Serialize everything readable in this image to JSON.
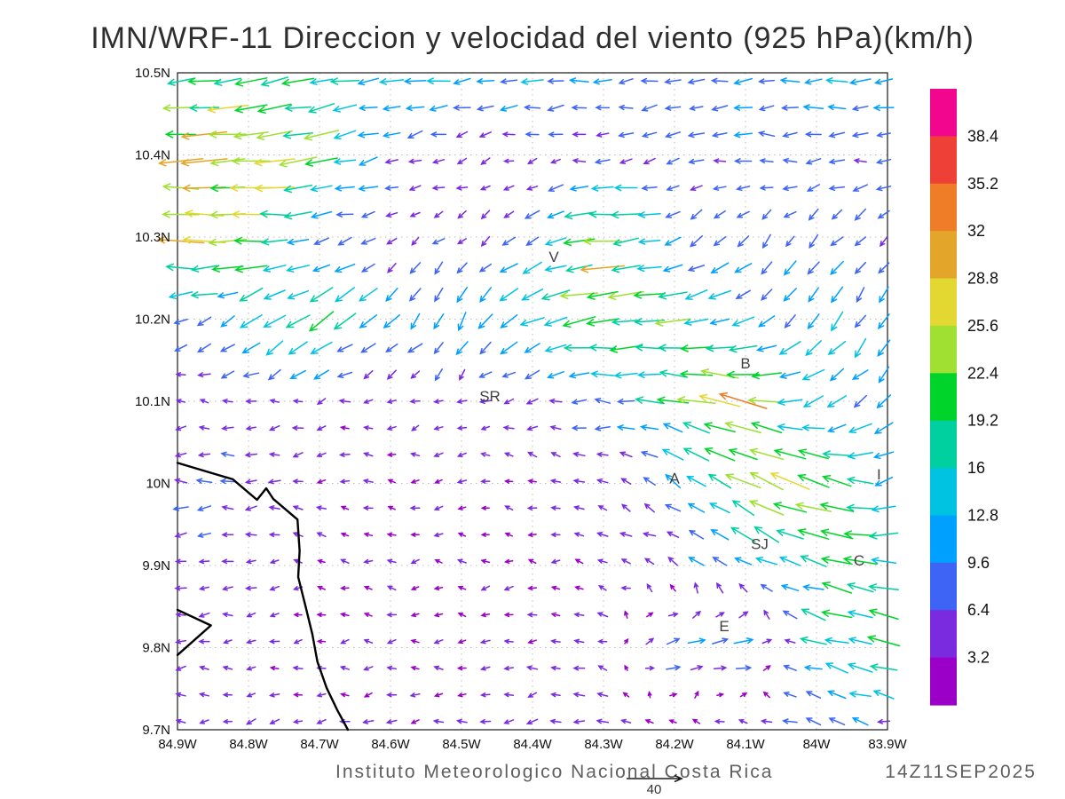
{
  "title": "IMN/WRF-11 Direccion y velocidad del viento (925 hPa)(km/h)",
  "footer": {
    "caption": "Instituto Meteorologico Nacional Costa Rica",
    "timestamp": "14Z11SEP2025",
    "reference_vector": {
      "label": "40",
      "value_kmh": 40
    }
  },
  "axes": {
    "x_tick_labels": [
      "84.9W",
      "84.8W",
      "84.7W",
      "84.6W",
      "84.5W",
      "84.4W",
      "84.3W",
      "84.2W",
      "84.1W",
      "84W",
      "83.9W"
    ],
    "y_tick_labels": [
      "10.5N",
      "10.4N",
      "10.3N",
      "10.2N",
      "10.1N",
      "10N",
      "9.9N",
      "9.8N",
      "9.7N"
    ],
    "lon_range": [
      -84.9,
      -83.9
    ],
    "lat_range": [
      9.7,
      10.5
    ],
    "grid_style": "dotted"
  },
  "colorbar": {
    "units": "km/h",
    "labels_top_to_bottom": [
      "38.4",
      "35.2",
      "32",
      "28.8",
      "25.6",
      "22.4",
      "19.2",
      "16",
      "12.8",
      "9.6",
      "6.4",
      "3.2"
    ],
    "colors_top_to_bottom": [
      "#f2068e",
      "#ef4037",
      "#ef7d28",
      "#e3a62b",
      "#e3d832",
      "#9fe032",
      "#00d42a",
      "#00cfa0",
      "#00c3e1",
      "#00a0ff",
      "#3d64f5",
      "#7a2be0",
      "#9b00c8"
    ]
  },
  "chart_data": {
    "type": "scatter",
    "variant": "wind_vector_field",
    "title": "IMN/WRF-11 Direccion y velocidad del viento (925 hPa)(km/h)",
    "level": "925 hPa",
    "units": "km/h",
    "xlim": [
      -84.9,
      -83.9
    ],
    "ylim": [
      9.7,
      10.5
    ],
    "speed_levels": [
      3.2,
      6.4,
      9.6,
      12.8,
      16,
      19.2,
      22.4,
      25.6,
      28.8,
      32,
      35.2,
      38.4
    ],
    "palette_low_to_high": [
      "#9b00c8",
      "#7a2be0",
      "#3d64f5",
      "#00a0ff",
      "#00c3e1",
      "#00cfa0",
      "#00d42a",
      "#9fe032",
      "#e3d832",
      "#e3a62b",
      "#ef7d28",
      "#ef4037",
      "#f2068e"
    ],
    "grid": {
      "lons": [
        -84.9,
        -84.8,
        -84.7,
        -84.6,
        -84.5,
        -84.4,
        -84.3,
        -84.2,
        -84.1,
        -84.0,
        -83.9
      ],
      "lats": [
        9.7,
        9.8,
        9.9,
        10.0,
        10.1,
        10.2,
        10.3,
        10.4,
        10.5
      ],
      "u_kmh": [
        [
          -4,
          -4,
          -4,
          -4,
          -4,
          -5,
          -5,
          -4,
          -6,
          -8,
          -6
        ],
        [
          -4,
          -4,
          -3,
          -3,
          -3,
          -4,
          -4,
          10,
          12,
          -14,
          -18
        ],
        [
          -5,
          -4,
          -3,
          -3,
          -3,
          -3,
          -4,
          -6,
          -10,
          -16,
          -20
        ],
        [
          -8,
          -6,
          -4,
          -3,
          -3,
          -3,
          -4,
          -8,
          -20,
          -24,
          -10
        ],
        [
          -4,
          -4,
          -4,
          -4,
          -4,
          -5,
          -8,
          -18,
          -28,
          -12,
          -8
        ],
        [
          -6,
          -12,
          -14,
          -8,
          -5,
          -14,
          -24,
          -20,
          -10,
          -6,
          -6
        ],
        [
          -28,
          -22,
          -10,
          -5,
          -4,
          -8,
          -26,
          -8,
          -5,
          -5,
          -5
        ],
        [
          -26,
          -30,
          -20,
          -6,
          -4,
          -4,
          -5,
          -6,
          -8,
          -8,
          -8
        ],
        [
          -20,
          -18,
          -16,
          -14,
          -12,
          -12,
          -10,
          -10,
          -10,
          -12,
          -12
        ]
      ],
      "v_kmh": [
        [
          0,
          -1,
          -1,
          -1,
          -1,
          -1,
          0,
          1,
          1,
          2,
          1
        ],
        [
          0,
          0,
          0,
          0,
          0,
          0,
          1,
          2,
          2,
          4,
          4
        ],
        [
          -1,
          0,
          0,
          0,
          0,
          0,
          1,
          3,
          6,
          4,
          2
        ],
        [
          0,
          0,
          0,
          0,
          0,
          1,
          2,
          6,
          10,
          8,
          -4
        ],
        [
          0,
          0,
          -1,
          -1,
          -2,
          -1,
          0,
          4,
          6,
          -6,
          -8
        ],
        [
          -2,
          -8,
          -10,
          -8,
          -10,
          -6,
          -2,
          -2,
          -6,
          -10,
          -8
        ],
        [
          2,
          0,
          -2,
          -2,
          -3,
          -4,
          -2,
          -4,
          -6,
          -6,
          -5
        ],
        [
          -2,
          -2,
          -4,
          -2,
          -1,
          -1,
          -1,
          -1,
          0,
          0,
          0
        ],
        [
          -2,
          -3,
          -3,
          -2,
          -2,
          -1,
          -1,
          -1,
          -1,
          -1,
          -1
        ]
      ]
    },
    "cities": [
      {
        "label": "V",
        "lon": -84.37,
        "lat": 10.27
      },
      {
        "label": "B",
        "lon": -84.1,
        "lat": 10.14
      },
      {
        "label": "SR",
        "lon": -84.46,
        "lat": 10.1
      },
      {
        "label": "A",
        "lon": -84.2,
        "lat": 10.0
      },
      {
        "label": "SJ",
        "lon": -84.08,
        "lat": 9.92
      },
      {
        "label": "C",
        "lon": -83.94,
        "lat": 9.9
      },
      {
        "label": "E",
        "lon": -84.13,
        "lat": 9.82
      },
      {
        "label": "I",
        "lon": -83.912,
        "lat": 10.005
      }
    ],
    "coastline": {
      "main": [
        [
          -84.9,
          10.025
        ],
        [
          -84.822,
          10.005
        ],
        [
          -84.788,
          9.98
        ],
        [
          -84.775,
          9.994
        ],
        [
          -84.765,
          9.981
        ],
        [
          -84.731,
          9.956
        ],
        [
          -84.728,
          9.918
        ],
        [
          -84.73,
          9.886
        ],
        [
          -84.719,
          9.848
        ],
        [
          -84.71,
          9.816
        ],
        [
          -84.703,
          9.783
        ],
        [
          -84.69,
          9.751
        ],
        [
          -84.675,
          9.724
        ],
        [
          -84.66,
          9.7
        ]
      ],
      "peninsula": [
        [
          -84.9,
          9.846
        ],
        [
          -84.853,
          9.827
        ],
        [
          -84.9,
          9.791
        ]
      ]
    }
  }
}
